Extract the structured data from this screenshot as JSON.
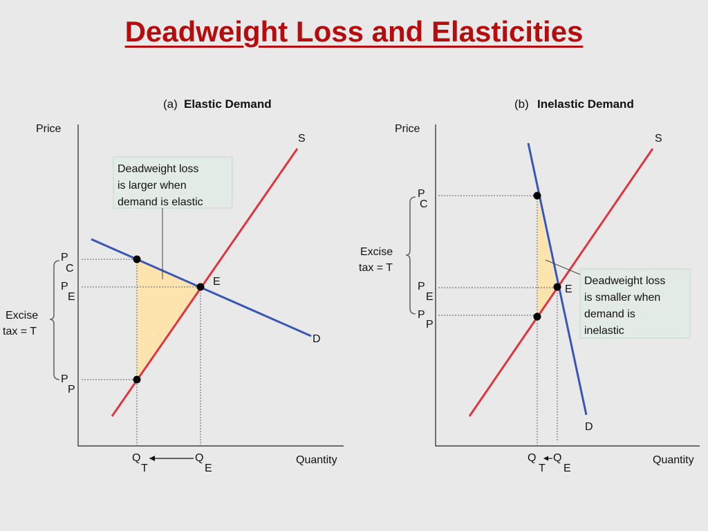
{
  "title": "Deadweight Loss and Elasticities",
  "colors": {
    "title": "#b50d0d",
    "supply": "#e0343e",
    "demand": "#3a56b3",
    "deadweight": "#fde3ad"
  },
  "panel_a": {
    "tag": "(a)",
    "heading": "Elastic Demand",
    "y_axis_label": "Price",
    "x_axis_label": "Quantity",
    "supply_label": "S",
    "demand_label": "D",
    "equilibrium_label": "E",
    "pc_main": "P",
    "pc_sub": "C",
    "pe_main": "P",
    "pe_sub": "E",
    "pp_main": "P",
    "pp_sub": "P",
    "qt_main": "Q",
    "qt_sub": "T",
    "qe_main": "Q",
    "qe_sub": "E",
    "tax_line1": "Excise",
    "tax_line2": "tax = T",
    "callout_lines": [
      "Deadweight loss",
      "is larger when",
      "demand is elastic"
    ]
  },
  "panel_b": {
    "tag": "(b)",
    "heading": "Inelastic Demand",
    "y_axis_label": "Price",
    "x_axis_label": "Quantity",
    "supply_label": "S",
    "demand_label": "D",
    "equilibrium_label": "E",
    "pc_main": "P",
    "pc_sub": "C",
    "pe_main": "P",
    "pe_sub": "E",
    "pp_main": "P",
    "pp_sub": "P",
    "qt_main": "Q",
    "qt_sub": "T",
    "qe_main": "Q",
    "qe_sub": "E",
    "tax_line1": "Excise",
    "tax_line2": "tax = T",
    "callout_lines": [
      "Deadweight loss",
      "is smaller when",
      "demand is",
      "inelastic"
    ]
  }
}
